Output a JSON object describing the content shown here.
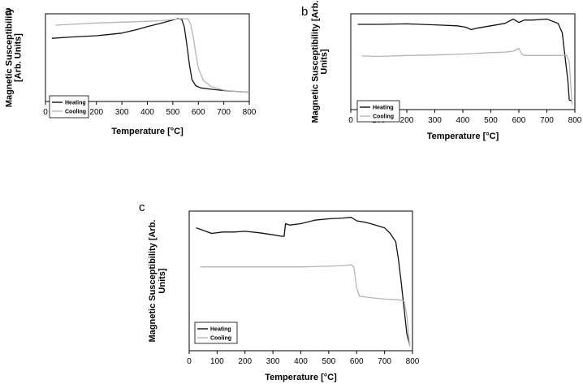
{
  "chart_data": [
    {
      "type": "line",
      "panel_label": "a",
      "xlabel": "Temperature [°C]",
      "ylabel_lines": [
        "Magnetic Susceptibility",
        "[Arb. Units]"
      ],
      "xlim": [
        0,
        800
      ],
      "xticks": [
        "0",
        "100",
        "200",
        "300",
        "400",
        "500",
        "600",
        "700",
        "800"
      ],
      "ylim": [
        0,
        1
      ],
      "grid": false,
      "legend_position": "bottom-left",
      "series": [
        {
          "name": "Heating",
          "color": "#111111",
          "x": [
            25,
            100,
            200,
            300,
            360,
            400,
            450,
            500,
            520,
            535,
            545,
            555,
            565,
            575,
            590,
            610,
            650,
            700,
            750,
            800
          ],
          "y": [
            0.72,
            0.735,
            0.75,
            0.78,
            0.82,
            0.855,
            0.89,
            0.93,
            0.945,
            0.935,
            0.85,
            0.65,
            0.42,
            0.25,
            0.18,
            0.155,
            0.14,
            0.125,
            0.115,
            0.105
          ]
        },
        {
          "name": "Cooling",
          "color": "#b5b5b5",
          "x": [
            40,
            100,
            200,
            300,
            400,
            450,
            500,
            540,
            560,
            570,
            580,
            590,
            600,
            620,
            650,
            700,
            750,
            800
          ],
          "y": [
            0.87,
            0.88,
            0.895,
            0.905,
            0.915,
            0.92,
            0.935,
            0.945,
            0.94,
            0.88,
            0.74,
            0.55,
            0.38,
            0.24,
            0.17,
            0.13,
            0.115,
            0.105
          ]
        }
      ]
    },
    {
      "type": "line",
      "panel_label": "b",
      "xlabel": "Temperature [°C]",
      "ylabel_lines": [
        "Magnetic Susceptibility [Arb.",
        "Units]"
      ],
      "xlim": [
        0,
        800
      ],
      "xticks": [
        "0",
        "100",
        "200",
        "300",
        "400",
        "500",
        "600",
        "700",
        "800"
      ],
      "ylim": [
        0,
        1
      ],
      "grid": false,
      "legend_position": "bottom-left",
      "series": [
        {
          "name": "Heating",
          "color": "#111111",
          "x": [
            25,
            100,
            200,
            300,
            380,
            410,
            430,
            450,
            500,
            550,
            580,
            600,
            620,
            650,
            700,
            740,
            755,
            765,
            775,
            780,
            790
          ],
          "y": [
            0.89,
            0.89,
            0.895,
            0.885,
            0.875,
            0.86,
            0.835,
            0.85,
            0.875,
            0.9,
            0.945,
            0.91,
            0.935,
            0.935,
            0.945,
            0.9,
            0.8,
            0.55,
            0.3,
            0.1,
            0.09
          ]
        },
        {
          "name": "Cooling",
          "color": "#b5b5b5",
          "x": [
            40,
            100,
            200,
            300,
            400,
            500,
            550,
            580,
            600,
            610,
            620,
            650,
            700,
            750,
            770,
            780,
            790
          ],
          "y": [
            0.56,
            0.555,
            0.565,
            0.57,
            0.58,
            0.595,
            0.6,
            0.61,
            0.64,
            0.58,
            0.565,
            0.565,
            0.565,
            0.565,
            0.57,
            0.5,
            0.05
          ]
        }
      ]
    },
    {
      "type": "line",
      "panel_label": "c",
      "xlabel": "Temperature [°C]",
      "ylabel_lines": [
        "Magnetic Susceptibility [Arb.",
        "Units]"
      ],
      "xlim": [
        0,
        800
      ],
      "xticks": [
        "0",
        "100",
        "200",
        "300",
        "400",
        "500",
        "600",
        "700",
        "800"
      ],
      "ylim": [
        0,
        1
      ],
      "grid": false,
      "legend_position": "bottom-left",
      "series": [
        {
          "name": "Heating",
          "color": "#111111",
          "x": [
            25,
            80,
            120,
            160,
            200,
            250,
            300,
            330,
            340,
            345,
            360,
            400,
            450,
            500,
            550,
            580,
            600,
            630,
            650,
            700,
            720,
            740,
            750,
            760,
            770,
            780,
            790
          ],
          "y": [
            0.88,
            0.84,
            0.85,
            0.85,
            0.855,
            0.845,
            0.83,
            0.82,
            0.82,
            0.91,
            0.9,
            0.91,
            0.935,
            0.945,
            0.95,
            0.955,
            0.93,
            0.92,
            0.91,
            0.88,
            0.84,
            0.78,
            0.65,
            0.48,
            0.3,
            0.12,
            0.04
          ]
        },
        {
          "name": "Cooling",
          "color": "#b5b5b5",
          "x": [
            40,
            100,
            200,
            300,
            400,
            500,
            560,
            580,
            590,
            600,
            610,
            650,
            700,
            750,
            770,
            780,
            790
          ],
          "y": [
            0.6,
            0.6,
            0.6,
            0.6,
            0.6,
            0.605,
            0.61,
            0.615,
            0.6,
            0.45,
            0.39,
            0.38,
            0.37,
            0.365,
            0.355,
            0.25,
            0.03
          ]
        }
      ]
    }
  ]
}
